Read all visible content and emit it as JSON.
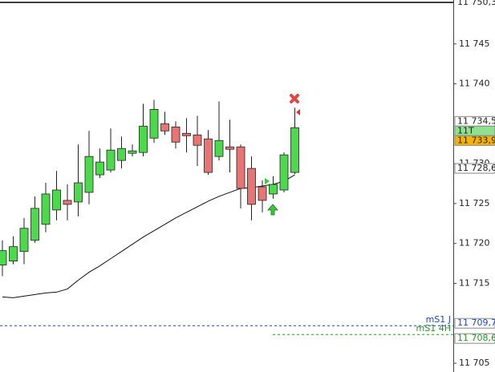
{
  "chart_data": {
    "type": "candlestick",
    "categories": [
      null,
      null,
      null,
      null,
      null,
      null,
      null,
      null,
      null,
      null,
      null,
      null,
      null,
      null,
      null,
      null,
      null,
      null,
      null,
      null,
      null,
      null,
      null,
      null,
      null,
      null,
      null,
      null
    ],
    "open": [
      11717.3,
      11717.8,
      11719.0,
      11720.4,
      11722.4,
      11724.2,
      11725.4,
      11725.2,
      11726.4,
      11728.6,
      11729.2,
      11730.4,
      11731.3,
      11731.4,
      11733.2,
      11735.0,
      11734.6,
      11733.8,
      11733.6,
      11733.1,
      11730.9,
      11732.1,
      11732.1,
      11729.4,
      11727.1,
      11726.2,
      11726.7,
      11728.9
    ],
    "high": [
      11720.4,
      11720.9,
      11723.2,
      11725.9,
      11727.6,
      11729.1,
      11727.4,
      11732.4,
      11734.1,
      11731.9,
      11734.4,
      11733.4,
      11732.4,
      11737.5,
      11738.0,
      11736.5,
      11735.3,
      11735.7,
      11736.0,
      11734.2,
      11737.8,
      11735.5,
      11732.4,
      11730.9,
      11727.9,
      11728.4,
      11731.4,
      11737.0
    ],
    "low": [
      11715.9,
      11717.4,
      11717.4,
      11720.1,
      11721.4,
      11722.9,
      11722.9,
      11723.4,
      11724.9,
      11728.2,
      11728.9,
      11729.4,
      11730.9,
      11730.9,
      11732.6,
      11733.6,
      11731.9,
      11731.4,
      11729.7,
      11728.6,
      11730.4,
      11728.9,
      11724.4,
      11722.9,
      11723.9,
      11725.6,
      11726.4,
      11728.7
    ],
    "close": [
      11719.1,
      11719.6,
      11721.9,
      11724.4,
      11726.2,
      11726.7,
      11724.9,
      11727.6,
      11730.9,
      11730.2,
      11731.7,
      11731.9,
      11731.6,
      11734.7,
      11736.8,
      11734.1,
      11732.7,
      11733.5,
      11732.3,
      11728.9,
      11732.9,
      11731.8,
      11726.9,
      11724.9,
      11725.4,
      11727.4,
      11731.1,
      11734.5
    ],
    "up_color": "#4cd94c",
    "down_color": "#e87474",
    "moving_average": {
      "color": "#111111",
      "values": [
        11713.3,
        11713.2,
        11713.4,
        11713.6,
        11713.8,
        11713.9,
        11714.3,
        11715.4,
        11716.4,
        11717.2,
        11718.1,
        11719.0,
        11719.9,
        11720.8,
        11721.6,
        11722.4,
        11723.2,
        11723.9,
        11724.6,
        11725.3,
        11725.9,
        11726.4,
        11726.9,
        11727.0,
        11727.2,
        11727.4,
        11727.8,
        11728.6
      ]
    },
    "ylim": [
      11703.9,
      11750.5
    ],
    "yticks": [
      {
        "value": 11705,
        "label": "11 705"
      },
      {
        "value": 11715,
        "label": "11 715"
      },
      {
        "value": 11720,
        "label": "11 720"
      },
      {
        "value": 11725,
        "label": "11 725"
      },
      {
        "value": 11730,
        "label": "11 730"
      },
      {
        "value": 11740,
        "label": "11 740"
      },
      {
        "value": 11745,
        "label": "11 745"
      }
    ],
    "levels": [
      {
        "name": null,
        "value": 11750.3,
        "label": "11 750,3",
        "color": "#000000",
        "dash": false
      },
      {
        "name": "mS1 J",
        "value": 11709.7,
        "label": "11 709,7",
        "color": "#2244cc",
        "dash": true
      },
      {
        "name": "mS1 4H",
        "value": 11708.6,
        "label": "11 708,6",
        "color": "#229922",
        "dash": true
      }
    ],
    "price_boxes": [
      {
        "value": 11734.5,
        "label": "11 734,5",
        "fill": "#ffffff"
      },
      {
        "value": null,
        "label": "11T",
        "fill": "#8fe08f"
      },
      {
        "value": 11733.9,
        "label": "11 733,9",
        "fill": "#f5b400"
      },
      {
        "value": 11728.6,
        "label": "11 728,6",
        "fill": "#ffffff"
      }
    ]
  }
}
